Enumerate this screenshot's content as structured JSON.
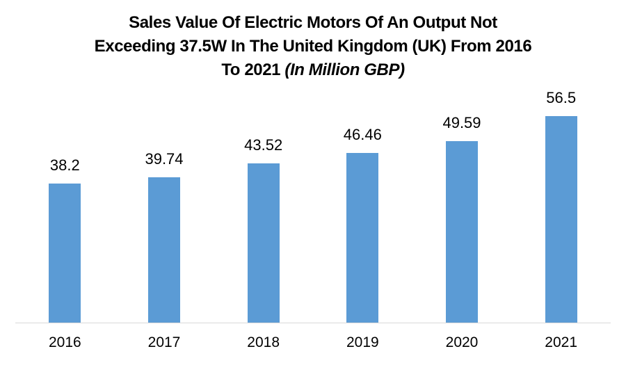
{
  "chart_data": {
    "type": "bar",
    "title": "Sales Value Of Electric Motors Of An Output Not Exceeding 37.5W In The United Kingdom (UK) From 2016 To 2021 (In Million GBP)",
    "title_lines": [
      "Sales Value Of Electric Motors Of An Output Not",
      "Exceeding 37.5W In The United Kingdom (UK) From 2016",
      "To 2021"
    ],
    "title_italic_suffix": "(In Million GBP)",
    "categories": [
      "2016",
      "2017",
      "2018",
      "2019",
      "2020",
      "2021"
    ],
    "values": [
      38.2,
      39.74,
      43.52,
      46.46,
      49.59,
      56.5
    ],
    "value_labels": [
      "38.2",
      "39.74",
      "43.52",
      "46.46",
      "49.59",
      "56.5"
    ],
    "xlabel": "",
    "ylabel": "",
    "ylim": [
      0,
      60
    ],
    "grid": false,
    "legend": "none",
    "bar_color": "#5b9bd5",
    "axis_line_color": "#d9d9d9",
    "text_color": "#000000",
    "background": "#ffffff"
  }
}
